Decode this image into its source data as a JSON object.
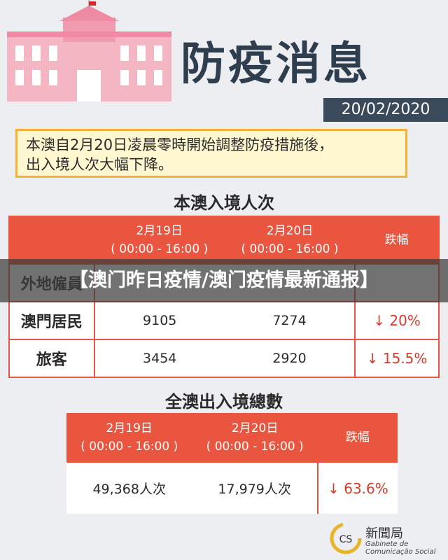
{
  "header": {
    "title": "防疫消息",
    "date": "20/02/2020"
  },
  "notice": [
    "本澳自2月20日凌晨零時開始調整防疫措施後，",
    "出入境人次大幅下降。"
  ],
  "entry": {
    "title": "本澳入境人次",
    "headers": [
      {
        "date": "2月19日",
        "time": "( 00:00 - 16:00 )"
      },
      {
        "date": "2月20日",
        "time": "( 00:00 - 16:00 )"
      },
      {
        "date": "跌幅"
      }
    ],
    "rows": [
      [
        "外地僱員",
        "",
        "",
        ""
      ],
      [
        "澳門居民",
        "9105",
        "7274",
        "↓ 20%"
      ],
      [
        "旅客",
        "3454",
        "2920",
        "↓ 15.5%"
      ]
    ]
  },
  "total": {
    "title": "全澳出入境總數",
    "headers": [
      {
        "date": "2月19日",
        "time": "( 00:00 - 16:00 )"
      },
      {
        "date": "2月20日",
        "time": "( 00:00 - 16:00 )"
      },
      {
        "date": "跌幅"
      }
    ],
    "rows": [
      [
        "49,368人次",
        "17,979人次",
        "↓ 63.6%"
      ]
    ]
  },
  "banner": "【澳门昨日疫情/澳门疫情最新通报】",
  "footer": {
    "name": "新聞局",
    "sub1": "Gabinete de",
    "sub2": "Comunicação Social"
  }
}
